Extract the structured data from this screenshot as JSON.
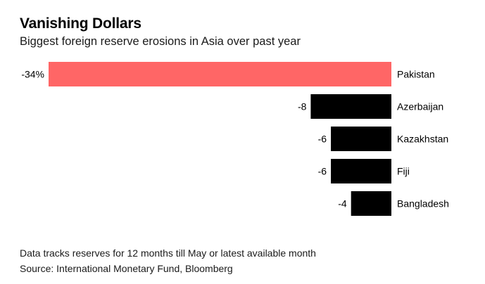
{
  "header": {
    "title": "Vanishing Dollars",
    "subtitle": "Biggest foreign reserve erosions in Asia over past year"
  },
  "footer": {
    "note": "Data tracks reserves for 12 months till May or latest available month",
    "source": "Source: International Monetary Fund, Bloomberg"
  },
  "chart_data": {
    "type": "bar",
    "orientation": "horizontal",
    "title": "Vanishing Dollars",
    "subtitle": "Biggest foreign reserve erosions in Asia over past year",
    "categories": [
      "Pakistan",
      "Azerbaijan",
      "Kazakhstan",
      "Fiji",
      "Bangladesh"
    ],
    "values": [
      -34,
      -8,
      -6,
      -6,
      -4
    ],
    "value_labels": [
      "-34%",
      "-8",
      "-6",
      "-6",
      "-4"
    ],
    "unit": "%",
    "xlim": [
      -34,
      0
    ],
    "grid": false,
    "colors": {
      "highlight": "#ff6666",
      "default": "#000000"
    },
    "highlight_index": 0
  }
}
